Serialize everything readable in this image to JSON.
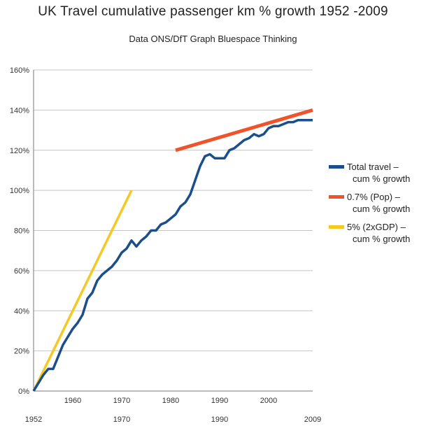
{
  "title": "UK Travel cumulative passenger km % growth 1952 -2009",
  "subtitle": "Data ONS/DfT Graph Bluespace Thinking",
  "chart_data": {
    "type": "line",
    "title": "UK Travel cumulative passenger km % growth 1952 -2009",
    "subtitle": "Data ONS/DfT Graph Bluespace Thinking",
    "xlabel": "",
    "ylabel": "",
    "xlim": [
      1952,
      2009
    ],
    "ylim": [
      0,
      160
    ],
    "y_ticks": [
      0,
      20,
      40,
      60,
      80,
      100,
      120,
      140,
      160
    ],
    "y_tick_labels": [
      "0%",
      "20%",
      "40%",
      "60%",
      "80%",
      "100%",
      "120%",
      "140%",
      "160%"
    ],
    "x_ticks_upper": [
      1960,
      1970,
      1980,
      1990,
      2000
    ],
    "x_ticks_upper_labels": [
      "1960",
      "1970",
      "1980",
      "1990",
      "2000"
    ],
    "x_ticks_lower": [
      1952,
      1970,
      1990,
      2009
    ],
    "x_ticks_lower_labels": [
      "1952",
      "1970",
      "1990",
      "2009"
    ],
    "grid": "horizontal",
    "legend_position": "right",
    "series": [
      {
        "name": "Total travel – cum % growth",
        "legend_lines": [
          "Total travel  –",
          "cum % growth"
        ],
        "color": "#1a4f8b",
        "x": [
          1952,
          1953,
          1954,
          1955,
          1956,
          1957,
          1958,
          1959,
          1960,
          1961,
          1962,
          1963,
          1964,
          1965,
          1966,
          1967,
          1968,
          1969,
          1970,
          1971,
          1972,
          1973,
          1974,
          1975,
          1976,
          1977,
          1978,
          1979,
          1980,
          1981,
          1982,
          1983,
          1984,
          1985,
          1986,
          1987,
          1988,
          1989,
          1990,
          1991,
          1992,
          1993,
          1994,
          1995,
          1996,
          1997,
          1998,
          1999,
          2000,
          2001,
          2002,
          2003,
          2004,
          2005,
          2006,
          2007,
          2008,
          2009
        ],
        "values": [
          0,
          4,
          8,
          11,
          11,
          17,
          23,
          27,
          31,
          34,
          38,
          46,
          49,
          55,
          58,
          60,
          62,
          65,
          69,
          71,
          75,
          72,
          75,
          77,
          80,
          80,
          83,
          84,
          86,
          88,
          92,
          94,
          98,
          105,
          112,
          117,
          118,
          116,
          116,
          116,
          120,
          121,
          123,
          125,
          126,
          128,
          127,
          128,
          131,
          132,
          132,
          133,
          134,
          134,
          135,
          135,
          135,
          135
        ]
      },
      {
        "name": "0.7% (Pop) – cum % growth",
        "legend_lines": [
          "0.7% (Pop) –",
          "cum % growth"
        ],
        "color": "#f0532a",
        "x": [
          1981,
          2009
        ],
        "values": [
          120,
          140
        ]
      },
      {
        "name": "5% (2xGDP) – cum % growth",
        "legend_lines": [
          "5% (2xGDP) –",
          "cum  % growth"
        ],
        "color": "#f5c823",
        "x": [
          1952,
          1972
        ],
        "values": [
          0,
          100
        ]
      }
    ]
  }
}
